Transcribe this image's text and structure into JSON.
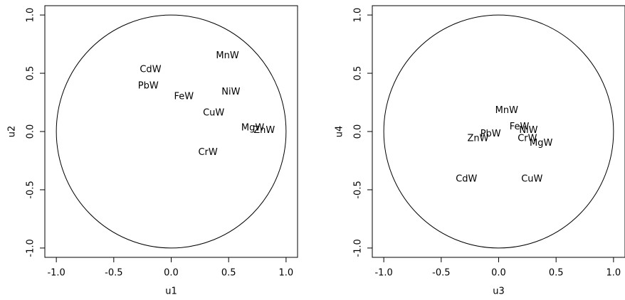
{
  "chart_data": [
    {
      "type": "scatter",
      "xlabel": "u1",
      "ylabel": "u2",
      "labels": [
        "MnW",
        "CdW",
        "PbW",
        "FeW",
        "NiW",
        "CuW",
        "MgW",
        "ZnW",
        "CrW"
      ],
      "x": [
        0.49,
        -0.18,
        -0.2,
        0.11,
        0.52,
        0.37,
        0.71,
        0.81,
        0.32
      ],
      "y": [
        0.65,
        0.53,
        0.39,
        0.3,
        0.34,
        0.16,
        0.03,
        0.01,
        -0.18
      ],
      "xlim": [
        -1.1,
        1.1
      ],
      "ylim": [
        -1.08,
        1.08
      ],
      "xticks": [
        {
          "value": -1,
          "label": "-1.0"
        },
        {
          "value": -0.5,
          "label": "-0.5"
        },
        {
          "value": 0,
          "label": "0.0"
        },
        {
          "value": 0.5,
          "label": "0.5"
        },
        {
          "value": 1,
          "label": "1.0"
        }
      ],
      "yticks": [
        {
          "value": -1,
          "label": "-1.0"
        },
        {
          "value": -0.5,
          "label": "-0.5"
        },
        {
          "value": 0,
          "label": "0.0"
        },
        {
          "value": 0.5,
          "label": "0.5"
        },
        {
          "value": 1,
          "label": "1.0"
        }
      ],
      "color": "#000000"
    },
    {
      "type": "scatter",
      "xlabel": "u3",
      "ylabel": "u4",
      "labels": [
        "MnW",
        "FeW",
        "NiW",
        "PbW",
        "ZnW",
        "CrW",
        "MgW",
        "CdW",
        "CuW"
      ],
      "x": [
        0.07,
        0.18,
        0.26,
        -0.07,
        -0.18,
        0.25,
        0.37,
        -0.28,
        0.29
      ],
      "y": [
        0.18,
        0.04,
        0.01,
        -0.02,
        -0.06,
        -0.06,
        -0.1,
        -0.41,
        -0.41
      ],
      "xlim": [
        -1.1,
        1.1
      ],
      "ylim": [
        -1.08,
        1.08
      ],
      "xticks": [
        {
          "value": -1,
          "label": "-1.0"
        },
        {
          "value": -0.5,
          "label": "-0.5"
        },
        {
          "value": 0,
          "label": "0.0"
        },
        {
          "value": 0.5,
          "label": "0.5"
        },
        {
          "value": 1,
          "label": "1.0"
        }
      ],
      "yticks": [
        {
          "value": -1,
          "label": "-1.0"
        },
        {
          "value": -0.5,
          "label": "-0.5"
        },
        {
          "value": 0,
          "label": "0.0"
        },
        {
          "value": 0.5,
          "label": "0.5"
        },
        {
          "value": 1,
          "label": "1.0"
        }
      ],
      "color": "#000000"
    }
  ]
}
